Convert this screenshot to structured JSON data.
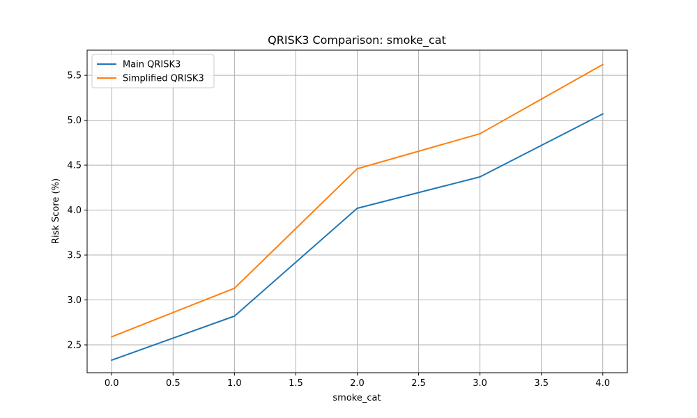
{
  "chart_data": {
    "type": "line",
    "title": "QRISK3 Comparison: smoke_cat",
    "xlabel": "smoke_cat",
    "ylabel": "Risk Score (%)",
    "x": [
      0,
      1,
      2,
      3,
      4
    ],
    "xlim": [
      -0.2,
      4.2
    ],
    "ylim": [
      2.19,
      5.78
    ],
    "xticks": [
      "0.0",
      "0.5",
      "1.0",
      "1.5",
      "2.0",
      "2.5",
      "3.0",
      "3.5",
      "4.0"
    ],
    "yticks": [
      "2.5",
      "3.0",
      "3.5",
      "4.0",
      "4.5",
      "5.0",
      "5.5"
    ],
    "grid": true,
    "legend_position": "top-left",
    "series": [
      {
        "name": "Main QRISK3",
        "color": "#1f77b4",
        "values": [
          2.33,
          2.82,
          4.02,
          4.37,
          5.07
        ]
      },
      {
        "name": "Simplified QRISK3",
        "color": "#ff7f0e",
        "values": [
          2.59,
          3.13,
          4.46,
          4.85,
          5.62
        ]
      }
    ]
  }
}
